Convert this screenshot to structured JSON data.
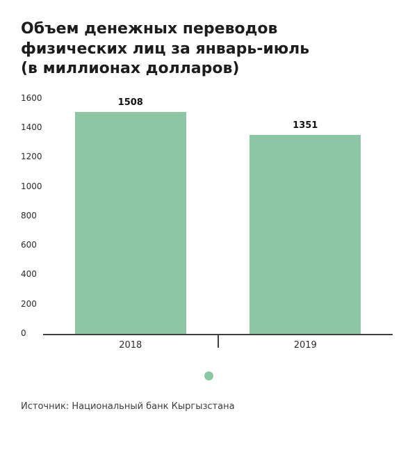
{
  "title": {
    "lines": [
      "Объем денежных переводов",
      "физических лиц за январь-июль",
      "(в миллионах долларов)"
    ]
  },
  "chart_data": {
    "type": "bar",
    "title": "Объем денежных переводов физических лиц за январь-июль (в миллионах долларов)",
    "categories": [
      "2018",
      "2019"
    ],
    "values": [
      1508,
      1351
    ],
    "xlabel": "",
    "ylabel": "",
    "ylim": [
      0,
      1600
    ],
    "yticks": [
      0,
      200,
      400,
      600,
      800,
      1000,
      1200,
      1400,
      1600
    ],
    "grid": false,
    "legend_position": "bottom-center",
    "bar_color": "#8dc6a4",
    "legend": {
      "marker_color": "#8dc6a4"
    }
  },
  "source": "Источник: Национальный банк Кыргызстана"
}
